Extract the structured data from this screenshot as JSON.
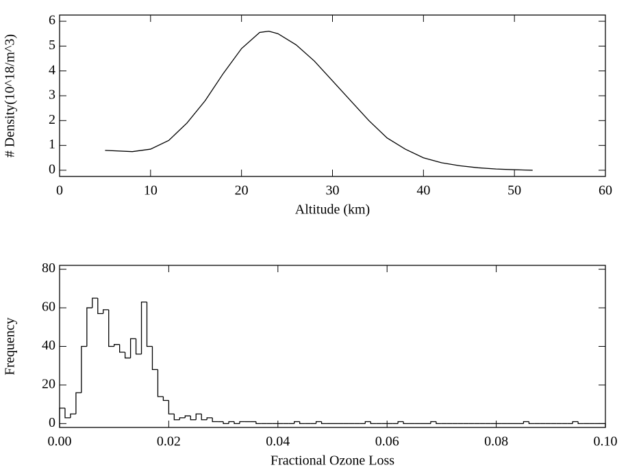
{
  "chart_data": [
    {
      "type": "line",
      "x_label": "Altitude (km)",
      "y_label": "# Density(10^18/m^3)",
      "xlim": [
        0,
        60
      ],
      "xticks": [
        0,
        10,
        20,
        30,
        40,
        50,
        60
      ],
      "ylim": [
        -0.25,
        6.25
      ],
      "yticks": [
        0,
        1,
        2,
        3,
        4,
        5,
        6
      ],
      "color": "#000000",
      "x": [
        5,
        8,
        10,
        12,
        14,
        16,
        18,
        20,
        22,
        23,
        24,
        26,
        28,
        30,
        32,
        34,
        36,
        38,
        40,
        42,
        44,
        46,
        48,
        50,
        52
      ],
      "values": [
        0.8,
        0.75,
        0.85,
        1.2,
        1.9,
        2.8,
        3.9,
        4.9,
        5.55,
        5.6,
        5.5,
        5.05,
        4.4,
        3.6,
        2.8,
        2.0,
        1.3,
        0.85,
        0.5,
        0.3,
        0.18,
        0.1,
        0.05,
        0.02,
        0.0
      ]
    },
    {
      "type": "histogram",
      "x_label": "Fractional Ozone Loss",
      "y_label": "Frequency",
      "xlim": [
        0,
        0.1
      ],
      "xticks": [
        {
          "value": 0,
          "label": "0.00"
        },
        {
          "value": 0.02,
          "label": "0.02"
        },
        {
          "value": 0.04,
          "label": "0.04"
        },
        {
          "value": 0.06,
          "label": "0.06"
        },
        {
          "value": 0.08,
          "label": "0.08"
        },
        {
          "value": 0.1,
          "label": "0.10"
        }
      ],
      "ylim": [
        -2,
        82
      ],
      "yticks": [
        0,
        20,
        40,
        60,
        80
      ],
      "color": "#000000",
      "bins": [
        0,
        0.001,
        0.002,
        0.003,
        0.004,
        0.005,
        0.006,
        0.007,
        0.008,
        0.009,
        0.01,
        0.011,
        0.012,
        0.013,
        0.014,
        0.015,
        0.016,
        0.017,
        0.018,
        0.019,
        0.02,
        0.021,
        0.022,
        0.023,
        0.024,
        0.025,
        0.026,
        0.027,
        0.028,
        0.029,
        0.03,
        0.031,
        0.032,
        0.033,
        0.034,
        0.035,
        0.036,
        0.037,
        0.038,
        0.039,
        0.04,
        0.041,
        0.042,
        0.043,
        0.044,
        0.045,
        0.046,
        0.047,
        0.048,
        0.049,
        0.05,
        0.051,
        0.052,
        0.053,
        0.054,
        0.055,
        0.056,
        0.057,
        0.058,
        0.059,
        0.06,
        0.061,
        0.062,
        0.063,
        0.064,
        0.065,
        0.066,
        0.067,
        0.068,
        0.069,
        0.07,
        0.071,
        0.072,
        0.073,
        0.074,
        0.075,
        0.076,
        0.077,
        0.078,
        0.079,
        0.08,
        0.081,
        0.082,
        0.083,
        0.084,
        0.085,
        0.086,
        0.087,
        0.088,
        0.089,
        0.09,
        0.091,
        0.092,
        0.093,
        0.094,
        0.095,
        0.096,
        0.097,
        0.098,
        0.099,
        0.1
      ],
      "values": [
        8,
        3,
        5,
        16,
        40,
        60,
        65,
        57,
        59,
        40,
        41,
        37,
        34,
        44,
        36,
        63,
        40,
        28,
        14,
        12,
        5,
        2,
        3,
        4,
        2,
        5,
        2,
        3,
        1,
        1,
        0,
        1,
        0,
        1,
        1,
        1,
        0,
        0,
        0,
        0,
        0,
        0,
        0,
        1,
        0,
        0,
        0,
        1,
        0,
        0,
        0,
        0,
        0,
        0,
        0,
        0,
        1,
        0,
        0,
        0,
        0,
        0,
        1,
        0,
        0,
        0,
        0,
        0,
        1,
        0,
        0,
        0,
        0,
        0,
        0,
        0,
        0,
        0,
        0,
        0,
        0,
        0,
        0,
        0,
        0,
        1,
        0,
        0,
        0,
        0,
        0,
        0,
        0,
        0,
        1,
        0,
        0,
        0,
        0,
        0
      ]
    }
  ]
}
